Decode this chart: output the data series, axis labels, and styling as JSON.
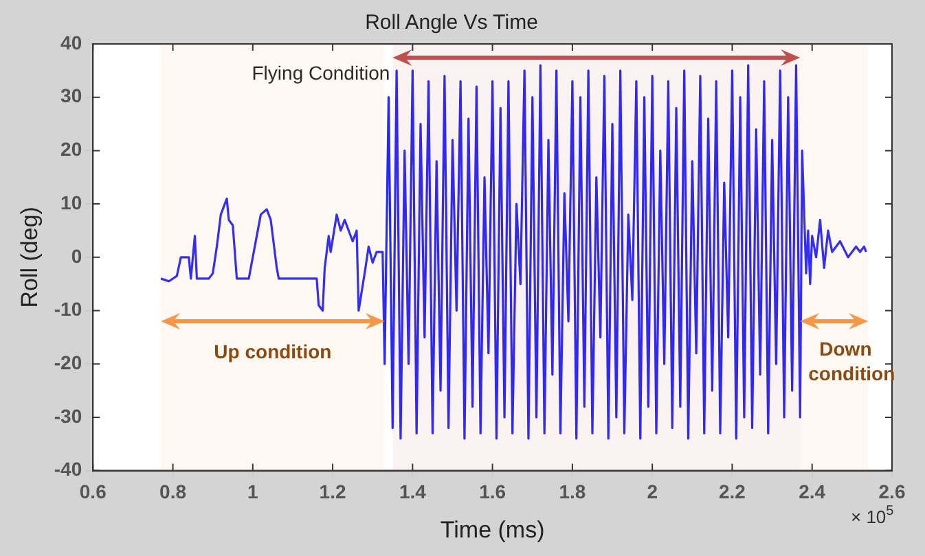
{
  "chart_data": {
    "type": "line",
    "title": "Roll Angle Vs Time",
    "xlabel": "Time (ms)",
    "ylabel": "Roll (deg)",
    "xlim": [
      0.6,
      2.6
    ],
    "xticks": [
      0.6,
      0.8,
      1,
      1.2,
      1.4,
      1.6,
      1.8,
      2,
      2.2,
      2.4,
      2.6
    ],
    "ylim": [
      -40,
      40
    ],
    "yticks": [
      -40,
      -30,
      -20,
      -10,
      0,
      10,
      20,
      30,
      40
    ],
    "grid": false,
    "legend": false,
    "annotations": [
      "× 10$^{5}$"
    ],
    "bands": [
      {
        "axis": "x",
        "from": 1.35,
        "to": 2.37,
        "label": "Flying Condition",
        "color": "#c0504d"
      },
      {
        "axis": "x",
        "from": 0.77,
        "to": 1.33,
        "label": "Up condition",
        "color": "#f79646"
      },
      {
        "axis": "x",
        "from": 2.37,
        "to": 2.54,
        "label": "Down condition",
        "color": "#f79646"
      }
    ],
    "series": [
      {
        "color": "#2626ff",
        "x": [
          0.77,
          0.79,
          0.81,
          0.82,
          0.84,
          0.845,
          0.855,
          0.86,
          0.89,
          0.9,
          0.91,
          0.92,
          0.935,
          0.94,
          0.95,
          0.96,
          0.99,
          1.0,
          1.02,
          1.035,
          1.045,
          1.06,
          1.065,
          1.16,
          1.165,
          1.175,
          1.18,
          1.19,
          1.195,
          1.21,
          1.22,
          1.23,
          1.25,
          1.26,
          1.265,
          1.28,
          1.29,
          1.3,
          1.31,
          1.325,
          1.33,
          1.34,
          1.35,
          1.36,
          1.37,
          1.38,
          1.39,
          1.4,
          1.41,
          1.42,
          1.43,
          1.44,
          1.45,
          1.46,
          1.47,
          1.48,
          1.49,
          1.5,
          1.51,
          1.52,
          1.53,
          1.54,
          1.55,
          1.56,
          1.57,
          1.58,
          1.59,
          1.6,
          1.61,
          1.62,
          1.63,
          1.64,
          1.65,
          1.66,
          1.67,
          1.68,
          1.69,
          1.7,
          1.71,
          1.72,
          1.73,
          1.74,
          1.75,
          1.76,
          1.77,
          1.78,
          1.79,
          1.8,
          1.81,
          1.82,
          1.83,
          1.84,
          1.85,
          1.86,
          1.87,
          1.88,
          1.89,
          1.9,
          1.91,
          1.92,
          1.93,
          1.94,
          1.95,
          1.96,
          1.97,
          1.98,
          1.99,
          2,
          2.01,
          2.02,
          2.03,
          2.04,
          2.05,
          2.06,
          2.07,
          2.08,
          2.09,
          2.1,
          2.11,
          2.12,
          2.13,
          2.14,
          2.15,
          2.16,
          2.17,
          2.18,
          2.19,
          2.2,
          2.21,
          2.22,
          2.23,
          2.24,
          2.25,
          2.26,
          2.27,
          2.28,
          2.29,
          2.3,
          2.31,
          2.32,
          2.33,
          2.34,
          2.35,
          2.36,
          2.37,
          2.375,
          2.385,
          2.39,
          2.395,
          2.4,
          2.41,
          2.42,
          2.43,
          2.44,
          2.45,
          2.47,
          2.49,
          2.51,
          2.52,
          2.53,
          2.535
        ],
        "values": [
          -4,
          -4.5,
          -3.5,
          0,
          0,
          -4,
          4,
          -4,
          -4,
          -3,
          2,
          8,
          11,
          7,
          6,
          -4,
          -4,
          0,
          8,
          9,
          7,
          -2,
          -4,
          -4,
          -9,
          -10,
          -2,
          4,
          1,
          8,
          5,
          7,
          3,
          5,
          -10,
          -3,
          2,
          -1,
          1,
          1,
          -20,
          30,
          -32,
          35,
          -34,
          20,
          -20,
          35,
          -33,
          25,
          -15,
          33,
          -33,
          18,
          -25,
          34,
          -32,
          22,
          -10,
          33,
          -34,
          26,
          -28,
          32,
          -33,
          15,
          -18,
          33,
          -34,
          28,
          -30,
          33,
          -33,
          10,
          -5,
          35,
          -34,
          30,
          -30,
          36,
          -33,
          22,
          -22,
          35,
          -33,
          12,
          -12,
          33,
          -34,
          30,
          -28,
          35,
          -33,
          15,
          -15,
          34,
          -34,
          25,
          -30,
          35,
          -33,
          8,
          -8,
          33,
          -34,
          30,
          -28,
          34,
          -33,
          20,
          -20,
          33,
          -32,
          28,
          -28,
          35,
          -34,
          18,
          -18,
          34,
          -33,
          26,
          -25,
          33,
          -33,
          14,
          -15,
          35,
          -34,
          30,
          -30,
          36,
          -32,
          24,
          -22,
          33,
          -33,
          22,
          -20,
          35,
          -30,
          30,
          -25,
          36,
          -30,
          20,
          -3,
          5,
          -5,
          4,
          0,
          7,
          -2,
          5,
          1,
          3,
          0,
          2,
          1,
          2,
          1
        ]
      }
    ]
  }
}
